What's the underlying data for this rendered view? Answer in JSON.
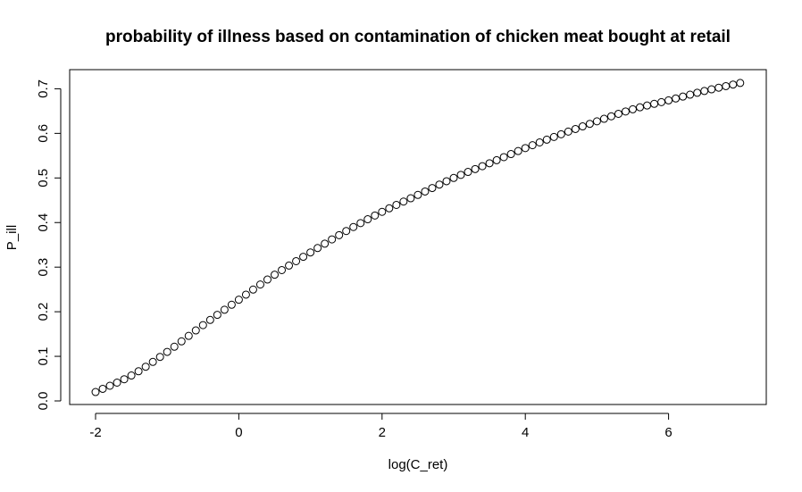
{
  "chart_data": {
    "type": "scatter",
    "title": "probability of illness based on contamination of chicken meat bought at retail",
    "xlabel": "log(C_ret)",
    "ylabel": "P_ill",
    "xlim": [
      -2,
      7
    ],
    "ylim": [
      0.0,
      0.7
    ],
    "x_ticks": [
      -2,
      0,
      2,
      4,
      6
    ],
    "x_tick_labels": [
      "-2",
      "0",
      "2",
      "4",
      "6"
    ],
    "y_ticks": [
      0.0,
      0.1,
      0.2,
      0.3,
      0.4,
      0.5,
      0.6,
      0.7
    ],
    "y_tick_labels": [
      "0.0",
      "0.1",
      "0.2",
      "0.3",
      "0.4",
      "0.5",
      "0.6",
      "0.7"
    ],
    "grid": false,
    "legend": "none",
    "marker": "open-circle",
    "x_range": {
      "from": -2,
      "to": 7,
      "count": 91
    },
    "curve_anchors": [
      [
        -2,
        0.02
      ],
      [
        -1.5,
        0.057
      ],
      [
        -1,
        0.11
      ],
      [
        -0.5,
        0.17
      ],
      [
        0,
        0.227
      ],
      [
        0.5,
        0.283
      ],
      [
        1,
        0.333
      ],
      [
        1.5,
        0.381
      ],
      [
        2,
        0.424
      ],
      [
        2.5,
        0.462
      ],
      [
        3,
        0.5
      ],
      [
        3.5,
        0.533
      ],
      [
        4,
        0.567
      ],
      [
        4.5,
        0.598
      ],
      [
        5,
        0.627
      ],
      [
        5.5,
        0.654
      ],
      [
        6,
        0.674
      ],
      [
        6.5,
        0.695
      ],
      [
        7,
        0.713
      ]
    ]
  }
}
